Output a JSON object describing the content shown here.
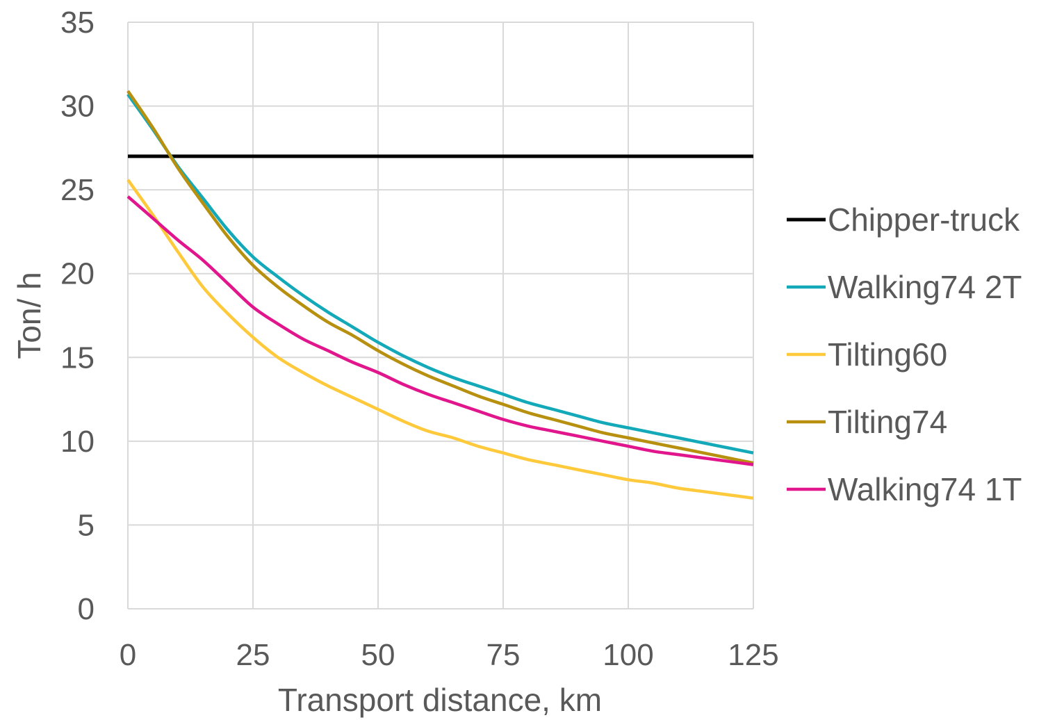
{
  "chart_data": {
    "type": "line",
    "title": "",
    "xlabel": "Transport distance, km",
    "ylabel": "Ton/ h",
    "xlim": [
      0,
      125
    ],
    "ylim": [
      0,
      35
    ],
    "x_ticks": [
      "0",
      "25",
      "50",
      "75",
      "100",
      "125"
    ],
    "y_ticks": [
      "0",
      "5",
      "10",
      "15",
      "20",
      "25",
      "30",
      "35"
    ],
    "grid": true,
    "legend_position": "right",
    "x": [
      0,
      5,
      10,
      15,
      20,
      25,
      30,
      35,
      40,
      45,
      50,
      55,
      60,
      65,
      70,
      75,
      80,
      85,
      90,
      95,
      100,
      105,
      110,
      115,
      120,
      125
    ],
    "series": [
      {
        "name": "Chipper-truck",
        "color": "#000000",
        "values": [
          27,
          27,
          27,
          27,
          27,
          27,
          27,
          27,
          27,
          27,
          27,
          27,
          27,
          27,
          27,
          27,
          27,
          27,
          27,
          27,
          27,
          27,
          27,
          27,
          27,
          27
        ]
      },
      {
        "name": "Walking74 2T",
        "color": "#13a9b9",
        "values": [
          30.7,
          28.6,
          26.4,
          24.5,
          22.6,
          21.0,
          19.8,
          18.7,
          17.7,
          16.8,
          15.9,
          15.1,
          14.4,
          13.8,
          13.3,
          12.8,
          12.3,
          11.9,
          11.5,
          11.1,
          10.8,
          10.5,
          10.2,
          9.9,
          9.6,
          9.3
        ]
      },
      {
        "name": "Tilting60",
        "color": "#ffc93c",
        "values": [
          25.6,
          23.5,
          21.3,
          19.2,
          17.6,
          16.2,
          15.0,
          14.1,
          13.3,
          12.6,
          11.9,
          11.2,
          10.6,
          10.2,
          9.7,
          9.3,
          8.9,
          8.6,
          8.3,
          8.0,
          7.7,
          7.5,
          7.2,
          7.0,
          6.8,
          6.6
        ]
      },
      {
        "name": "Tilting74",
        "color": "#b8900f",
        "values": [
          30.9,
          28.7,
          26.3,
          24.2,
          22.2,
          20.5,
          19.2,
          18.1,
          17.1,
          16.3,
          15.4,
          14.6,
          13.9,
          13.3,
          12.7,
          12.2,
          11.7,
          11.3,
          10.9,
          10.5,
          10.2,
          9.9,
          9.6,
          9.3,
          9.0,
          8.7
        ]
      },
      {
        "name": "Walking74 1T",
        "color": "#e1168c",
        "values": [
          24.6,
          23.3,
          22.0,
          20.8,
          19.4,
          18.0,
          17.0,
          16.1,
          15.4,
          14.7,
          14.1,
          13.4,
          12.8,
          12.3,
          11.8,
          11.3,
          10.9,
          10.6,
          10.3,
          10.0,
          9.7,
          9.4,
          9.2,
          9.0,
          8.8,
          8.6
        ]
      }
    ]
  }
}
